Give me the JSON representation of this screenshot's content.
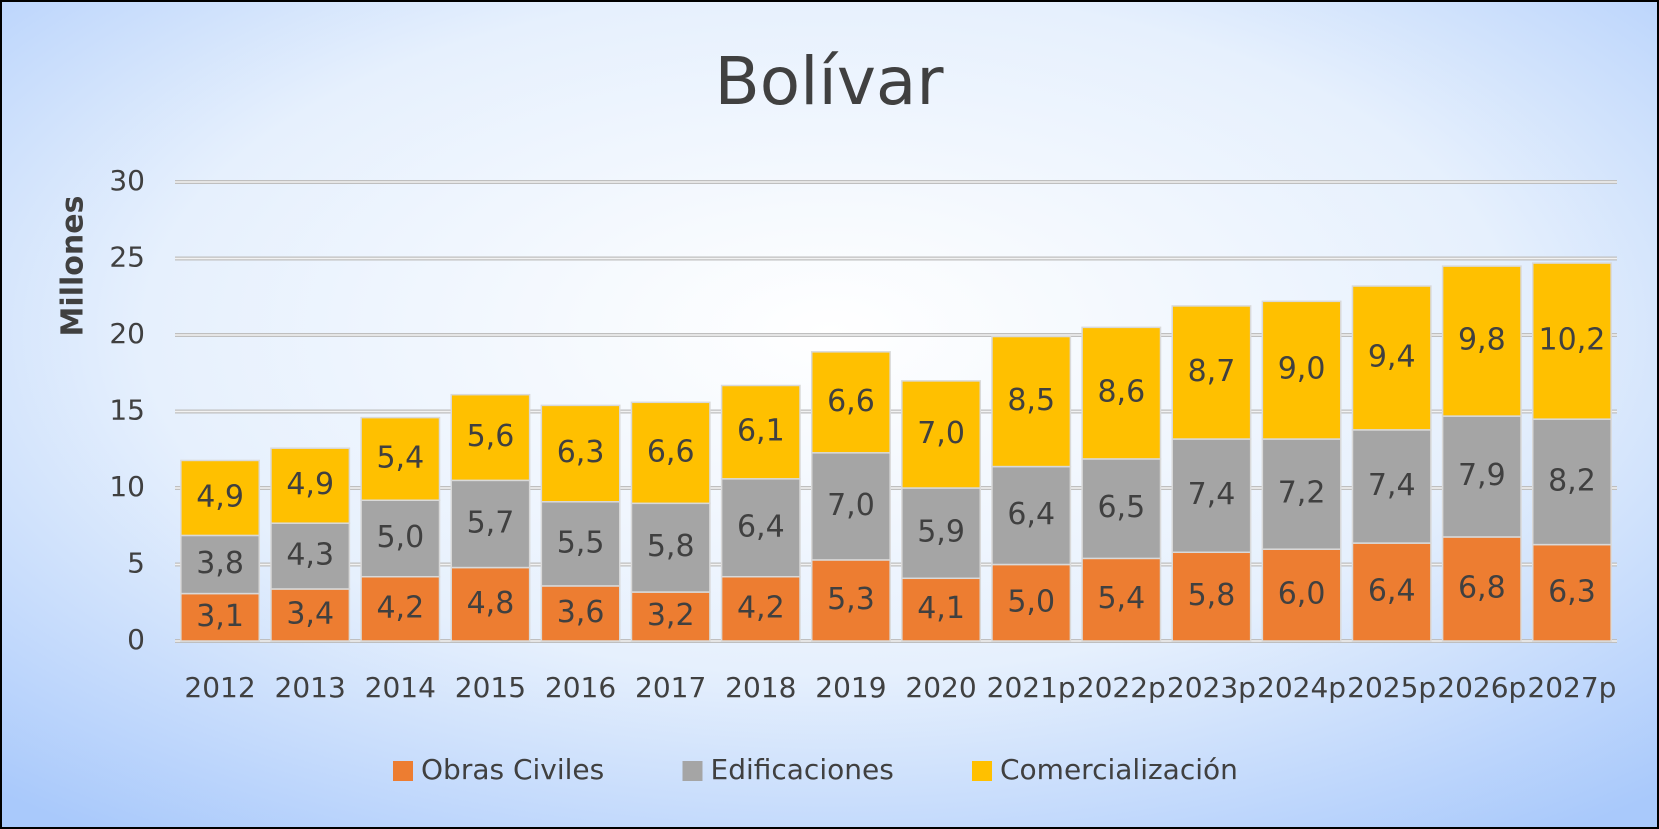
{
  "chart_data": {
    "type": "stacked_bar",
    "title": "Bolívar",
    "y_label": "Millones",
    "categories": [
      "2012",
      "2013",
      "2014",
      "2015",
      "2016",
      "2017",
      "2018",
      "2019",
      "2020",
      "2021p",
      "2022p",
      "2023p",
      "2024p",
      "2025p",
      "2026p",
      "2027p"
    ],
    "series": [
      {
        "name": "Obras Civiles",
        "color": "#ed7d31",
        "values": [
          3.1,
          3.4,
          4.2,
          4.8,
          3.6,
          3.2,
          4.2,
          5.3,
          4.1,
          5.0,
          5.4,
          5.8,
          6.0,
          6.4,
          6.8,
          6.3
        ],
        "value_labels": [
          "3,1",
          "3,4",
          "4,2",
          "4,8",
          "3,6",
          "3,2",
          "4,2",
          "5,3",
          "4,1",
          "5,0",
          "5,4",
          "5,8",
          "6,0",
          "6,4",
          "6,8",
          "6,3"
        ]
      },
      {
        "name": "Edificaciones",
        "color": "#a5a5a5",
        "values": [
          3.8,
          4.3,
          5.0,
          5.7,
          5.5,
          5.8,
          6.4,
          7.0,
          5.9,
          6.4,
          6.5,
          7.4,
          7.2,
          7.4,
          7.9,
          8.2
        ],
        "value_labels": [
          "3,8",
          "4,3",
          "5,0",
          "5,7",
          "5,5",
          "5,8",
          "6,4",
          "7,0",
          "5,9",
          "6,4",
          "6,5",
          "7,4",
          "7,2",
          "7,4",
          "7,9",
          "8,2"
        ]
      },
      {
        "name": "Comercialización",
        "color": "#ffc000",
        "values": [
          4.9,
          4.9,
          5.4,
          5.6,
          6.3,
          6.6,
          6.1,
          6.6,
          7.0,
          8.5,
          8.6,
          8.7,
          9.0,
          9.4,
          9.8,
          10.2
        ],
        "value_labels": [
          "4,9",
          "4,9",
          "5,4",
          "5,6",
          "6,3",
          "6,6",
          "6,1",
          "6,6",
          "7,0",
          "8,5",
          "8,6",
          "8,7",
          "9,0",
          "9,4",
          "9,8",
          "10,2"
        ]
      }
    ],
    "ylim": [
      0,
      30
    ],
    "yticks": [
      0,
      5,
      10,
      15,
      20,
      25,
      30
    ],
    "grid": true,
    "legend": "bottom"
  }
}
